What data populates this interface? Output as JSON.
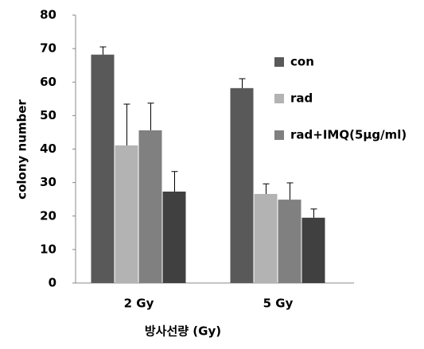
{
  "chart_data": {
    "type": "bar",
    "categories": [
      "2 Gy",
      "5 Gy"
    ],
    "series": [
      {
        "name": "con",
        "color": "#595959",
        "values": [
          68.2,
          58.2
        ],
        "errors": [
          2.3,
          2.8
        ]
      },
      {
        "name": "rad",
        "color": "#b3b3b3",
        "values": [
          41.1,
          26.6
        ],
        "errors": [
          12.3,
          3.0
        ]
      },
      {
        "name": "rad+IMQ(5μg/ml)",
        "color": "#808080",
        "values": [
          45.6,
          24.9
        ],
        "errors": [
          8.1,
          5.0
        ]
      },
      {
        "name": null,
        "color": "#404040",
        "values": [
          27.3,
          19.5
        ],
        "errors": [
          6.0,
          2.6
        ]
      }
    ],
    "x_label": "방사선량 (Gy)",
    "y_label": "colony number",
    "ylim": [
      0,
      80
    ],
    "yticks": [
      0,
      10,
      20,
      30,
      40,
      50,
      60,
      70,
      80
    ],
    "legend": "right"
  }
}
